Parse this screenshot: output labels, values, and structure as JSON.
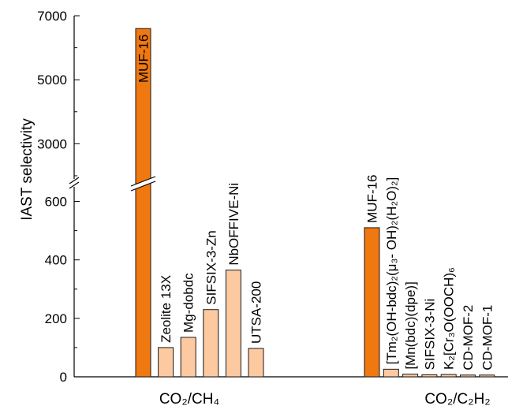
{
  "chart_data": {
    "type": "bar",
    "ylabel": "IAST selectivity",
    "axis_break": {
      "lower_max": 650,
      "upper_min": 1900
    },
    "ylim": [
      0,
      7000
    ],
    "y_ticks_lower": [
      "0",
      "200",
      "400",
      "600"
    ],
    "y_ticks_upper": [
      "3000",
      "5000",
      "7000"
    ],
    "colors": {
      "highlight": "#f07810",
      "other": "#fdc9a0",
      "outline": "#1a1a1a"
    },
    "groups": [
      {
        "name": "CO₂/CH₄",
        "bars": [
          {
            "label": "MUF-16",
            "value": 6600,
            "highlight": true
          },
          {
            "label": "Zeolite 13X",
            "value": 100,
            "highlight": false
          },
          {
            "label": "Mg-dobdc",
            "value": 135,
            "highlight": false
          },
          {
            "label": "SIFSIX-3-Zn",
            "value": 230,
            "highlight": false
          },
          {
            "label": "NbOFFIVE-Ni",
            "value": 365,
            "highlight": false
          },
          {
            "label": "UTSA-200",
            "value": 97,
            "highlight": false
          }
        ]
      },
      {
        "name": "CO₂/C₂H₂",
        "bars": [
          {
            "label": "MUF-16",
            "value": 510,
            "highlight": true
          },
          {
            "label": "[Tm₂(OH-bdc)₂(μ₃- OH)₂(H₂O)₂]",
            "value": 26,
            "highlight": false
          },
          {
            "label": "[Mn(bdc)(dpe)]",
            "value": 9,
            "highlight": false
          },
          {
            "label": "SIFSIX-3-Ni",
            "value": 7,
            "highlight": false
          },
          {
            "label": "K₂[Cr₃O(OOCH)₆",
            "value": 8,
            "highlight": false
          },
          {
            "label": "CD-MOF-2",
            "value": 6,
            "highlight": false
          },
          {
            "label": "CD-MOF-1",
            "value": 6,
            "highlight": false
          }
        ]
      }
    ]
  }
}
